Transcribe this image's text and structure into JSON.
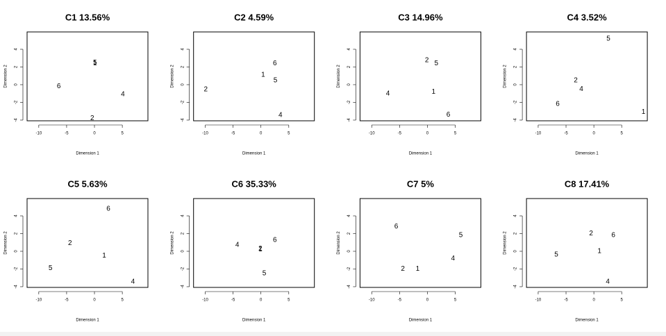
{
  "chart_data": [
    {
      "type": "scatter",
      "title": "C1 13.56%",
      "xlabel": "Dimension 1",
      "ylabel": "Dimension 2",
      "labels": [
        "5",
        "1",
        "6",
        "4",
        "2"
      ],
      "x": [
        0.1,
        0.1,
        -6.4,
        5.1,
        -0.4
      ],
      "y": [
        2.5,
        2.4,
        -0.2,
        -1.1,
        -3.8
      ],
      "xlim": [
        -12.1,
        9.6
      ],
      "ylim": [
        -4.08,
        5.96
      ],
      "xticks": [
        -10,
        -5,
        0,
        5
      ],
      "yticks": [
        -4,
        -2,
        0,
        2,
        4
      ]
    },
    {
      "type": "scatter",
      "title": "C2 4.59%",
      "xlabel": "Dimension 1",
      "ylabel": "Dimension 2",
      "labels": [
        "2",
        "1",
        "6",
        "5",
        "4"
      ],
      "x": [
        -9.9,
        0.4,
        2.5,
        2.6,
        3.5
      ],
      "y": [
        -0.55,
        1.1,
        2.4,
        0.5,
        -3.45
      ],
      "xlim": [
        -12.1,
        9.6
      ],
      "ylim": [
        -4.08,
        5.96
      ],
      "xticks": [
        -10,
        -5,
        0,
        5
      ],
      "yticks": [
        -4,
        -2,
        0,
        2,
        4
      ]
    },
    {
      "type": "scatter",
      "title": "C3 14.96%",
      "xlabel": "Dimension 1",
      "ylabel": "Dimension 2",
      "labels": [
        "2",
        "5",
        "4",
        "1",
        "6"
      ],
      "x": [
        -0.1,
        1.6,
        -7.1,
        1.1,
        3.75
      ],
      "y": [
        2.75,
        2.4,
        -1.0,
        -0.8,
        -3.4
      ],
      "xlim": [
        -12.1,
        9.6
      ],
      "ylim": [
        -4.08,
        5.96
      ],
      "xticks": [
        -10,
        -5,
        0,
        5
      ],
      "yticks": [
        -4,
        -2,
        0,
        2,
        4
      ]
    },
    {
      "type": "scatter",
      "title": "C4 3.52%",
      "xlabel": "Dimension 1",
      "ylabel": "Dimension 2",
      "labels": [
        "5",
        "2",
        "4",
        "6",
        "1"
      ],
      "x": [
        2.6,
        -3.25,
        -2.25,
        -6.5,
        8.9
      ],
      "y": [
        5.2,
        0.5,
        -0.5,
        -2.2,
        -3.1
      ],
      "xlim": [
        -12.1,
        9.6
      ],
      "ylim": [
        -4.08,
        5.96
      ],
      "xticks": [
        -10,
        -5,
        0,
        5
      ],
      "yticks": [
        -4,
        -2,
        0,
        2,
        4
      ]
    },
    {
      "type": "scatter",
      "title": "C5 5.63%",
      "xlabel": "Dimension 1",
      "ylabel": "Dimension 2",
      "labels": [
        "6",
        "2",
        "1",
        "5",
        "4"
      ],
      "x": [
        2.5,
        -4.4,
        1.75,
        -7.9,
        6.9
      ],
      "y": [
        4.8,
        0.9,
        -0.5,
        -1.9,
        -3.45
      ],
      "xlim": [
        -12.1,
        9.6
      ],
      "ylim": [
        -4.08,
        5.96
      ],
      "xticks": [
        -10,
        -5,
        0,
        5
      ],
      "yticks": [
        -4,
        -2,
        0,
        2,
        4
      ]
    },
    {
      "type": "scatter",
      "title": "C6 35.33%",
      "xlabel": "Dimension 1",
      "ylabel": "Dimension 2",
      "labels": [
        "4",
        "2",
        "1",
        "6",
        "5"
      ],
      "x": [
        -4.25,
        -0.1,
        -0.1,
        2.5,
        0.6
      ],
      "y": [
        0.7,
        0.3,
        0.2,
        1.25,
        -2.5
      ],
      "xlim": [
        -12.1,
        9.6
      ],
      "ylim": [
        -4.08,
        5.96
      ],
      "xticks": [
        -10,
        -5,
        0,
        5
      ],
      "yticks": [
        -4,
        -2,
        0,
        2,
        4
      ]
    },
    {
      "type": "scatter",
      "title": "C7 5%",
      "xlabel": "Dimension 1",
      "ylabel": "Dimension 2",
      "labels": [
        "6",
        "5",
        "4",
        "2",
        "1"
      ],
      "x": [
        -5.6,
        6.0,
        4.6,
        -4.4,
        -1.75
      ],
      "y": [
        2.8,
        1.8,
        -0.8,
        -2.0,
        -2.0
      ],
      "xlim": [
        -12.1,
        9.6
      ],
      "ylim": [
        -4.08,
        5.96
      ],
      "xticks": [
        -10,
        -5,
        0,
        5
      ],
      "yticks": [
        -4,
        -2,
        0,
        2,
        4
      ]
    },
    {
      "type": "scatter",
      "title": "C8 17.41%",
      "xlabel": "Dimension 1",
      "ylabel": "Dimension 2",
      "labels": [
        "2",
        "6",
        "1",
        "5",
        "4"
      ],
      "x": [
        -0.5,
        3.5,
        1.0,
        -6.75,
        2.5
      ],
      "y": [
        2.0,
        1.8,
        0.0,
        -0.4,
        -3.45
      ],
      "xlim": [
        -12.1,
        9.6
      ],
      "ylim": [
        -4.08,
        5.96
      ],
      "xticks": [
        -10,
        -5,
        0,
        5
      ],
      "yticks": [
        -4,
        -2,
        0,
        2,
        4
      ]
    }
  ]
}
